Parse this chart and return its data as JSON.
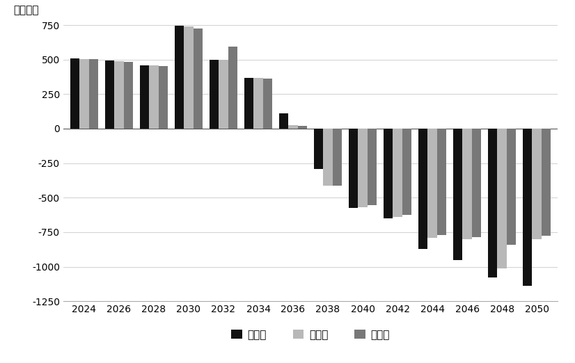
{
  "years": [
    2024,
    2026,
    2028,
    2030,
    2032,
    2034,
    2036,
    2038,
    2040,
    2042,
    2044,
    2046,
    2048,
    2050
  ],
  "low": [
    510,
    495,
    460,
    745,
    500,
    370,
    110,
    -290,
    -575,
    -650,
    -870,
    -950,
    -1080,
    -1140
  ],
  "mid": [
    505,
    490,
    458,
    740,
    500,
    365,
    25,
    -415,
    -570,
    -640,
    -790,
    -800,
    -1010,
    -800
  ],
  "high": [
    505,
    485,
    455,
    725,
    595,
    360,
    20,
    -415,
    -555,
    -625,
    -770,
    -785,
    -840,
    -775
  ],
  "ylabel": "（万人）",
  "ylim": [
    -1250,
    800
  ],
  "yticks": [
    -1250,
    -1000,
    -750,
    -500,
    -250,
    0,
    250,
    500,
    750
  ],
  "xtick_labels": [
    "2024",
    "2026",
    "2028",
    "2030",
    "2032",
    "2034",
    "2036",
    "2038",
    "2040",
    "2042",
    "2044",
    "2046",
    "2048",
    "2050"
  ],
  "legend_labels": [
    "低方案",
    "中方案",
    "高方案"
  ],
  "bar_colors": [
    "#111111",
    "#b8b8b8",
    "#787878"
  ],
  "bar_width": 0.27,
  "background_color": "#ffffff",
  "grid_color": "#d0d0d0"
}
